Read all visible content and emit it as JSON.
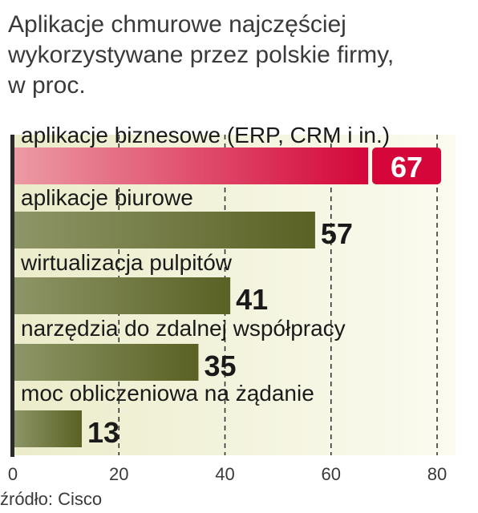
{
  "chart_data": {
    "type": "bar",
    "orientation": "horizontal",
    "title_lines": [
      "Aplikacje chmurowe najczęściej",
      "wykorzystywane przez polskie firmy,",
      "w proc."
    ],
    "categories": [
      "aplikacje biznesowe (ERP, CRM i in.)",
      "aplikacje biurowe",
      "wirtualizacja pulpitów",
      "narzędzia do zdalnej współpracy",
      "moc obliczeniowa na żądanie"
    ],
    "values": [
      67,
      57,
      41,
      35,
      13
    ],
    "value_labels": [
      "67",
      "57",
      "41",
      "35",
      "13"
    ],
    "highlight_index": 0,
    "xlim": [
      0,
      80
    ],
    "xticks": [
      "0",
      "20",
      "40",
      "60",
      "80"
    ],
    "grid": "vertical-dashed",
    "colors": {
      "highlight_start": "#ec9ba4",
      "highlight_end": "#d4063a",
      "bar_start": "#8e9668",
      "bar_end": "#5a6124",
      "panel_start": "#ebecca",
      "panel_end": "#fbfbf0"
    }
  },
  "source": "źródło: Cisco"
}
